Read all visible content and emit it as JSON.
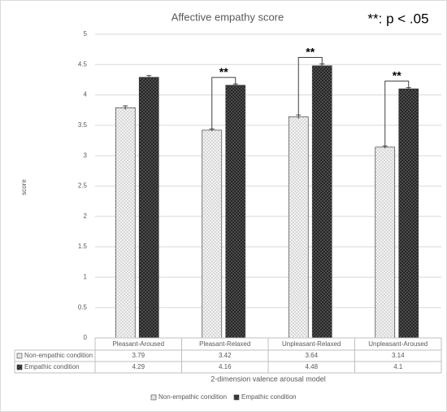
{
  "chart_data": {
    "type": "bar",
    "title": "Affective empathy score",
    "annotation": "**: p < .05",
    "y_label": "score",
    "x_label": "2-dimension valence arousal model",
    "categories": [
      "Pleasant-Aroused",
      "Pleasant-Relaxed",
      "Unpleasant-Relaxed",
      "Unpleasant-Aroused"
    ],
    "series": [
      {
        "name": "Non-empathic condition",
        "color": "#f2f2f2",
        "values": [
          3.79,
          3.42,
          3.64,
          3.14
        ],
        "errors": [
          0.03,
          0.02,
          0.03,
          0.02
        ]
      },
      {
        "name": "Empathic condition",
        "color": "#262626",
        "values": [
          4.29,
          4.16,
          4.48,
          4.1
        ],
        "errors": [
          0.03,
          0.02,
          0.03,
          0.02
        ]
      }
    ],
    "significance": [
      {
        "category": "Pleasant-Relaxed",
        "label": "**"
      },
      {
        "category": "Unpleasant-Relaxed",
        "label": "**"
      },
      {
        "category": "Unpleasant-Aroused",
        "label": "**"
      }
    ],
    "ylim": [
      0,
      5
    ],
    "yticks": [
      0,
      0.5,
      1,
      1.5,
      2,
      2.5,
      3,
      3.5,
      4,
      4.5,
      5
    ],
    "grid": true,
    "legend": "bottom"
  }
}
